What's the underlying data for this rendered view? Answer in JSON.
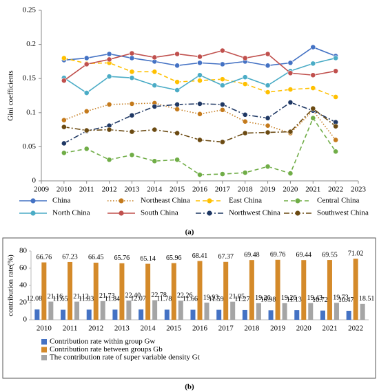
{
  "chart_data": [
    {
      "type": "line",
      "caption": "(a)",
      "y_label": "Gini coefficients",
      "x": [
        2010,
        2011,
        2012,
        2013,
        2014,
        2015,
        2016,
        2017,
        2018,
        2019,
        2020,
        2021,
        2022
      ],
      "xlim": [
        2009,
        2023
      ],
      "xticks": [
        2009,
        2010,
        2011,
        2012,
        2013,
        2014,
        2015,
        2016,
        2017,
        2018,
        2019,
        2020,
        2021,
        2022,
        2023
      ],
      "ylim": [
        0,
        0.25
      ],
      "yticks": [
        0,
        0.05,
        0.1,
        0.15,
        0.2,
        0.25
      ],
      "series": [
        {
          "name": "China",
          "color": "#4472c4",
          "style": "solid",
          "values": [
            0.177,
            0.18,
            0.186,
            0.18,
            0.175,
            0.169,
            0.173,
            0.171,
            0.175,
            0.169,
            0.173,
            0.196,
            0.183
          ]
        },
        {
          "name": "Northeast China",
          "color": "#c47a1c",
          "style": "dotted",
          "values": [
            0.089,
            0.102,
            0.112,
            0.113,
            0.114,
            0.105,
            0.098,
            0.104,
            0.087,
            0.081,
            0.07,
            0.103,
            0.06
          ]
        },
        {
          "name": "East China",
          "color": "#ffc000",
          "style": "dashed",
          "values": [
            0.18,
            0.172,
            0.173,
            0.16,
            0.16,
            0.145,
            0.147,
            0.149,
            0.142,
            0.13,
            0.134,
            0.136,
            0.123
          ]
        },
        {
          "name": "Central China",
          "color": "#70ad47",
          "style": "dashed",
          "values": [
            0.041,
            0.047,
            0.031,
            0.038,
            0.029,
            0.031,
            0.009,
            0.01,
            0.012,
            0.021,
            0.011,
            0.092,
            0.043
          ]
        },
        {
          "name": "North China",
          "color": "#4bacc6",
          "style": "solid",
          "values": [
            0.151,
            0.129,
            0.153,
            0.151,
            0.14,
            0.133,
            0.155,
            0.14,
            0.152,
            0.14,
            0.161,
            0.172,
            0.18
          ]
        },
        {
          "name": "South China",
          "color": "#c0504d",
          "style": "solid",
          "values": [
            0.147,
            0.171,
            0.178,
            0.187,
            0.181,
            0.186,
            0.182,
            0.191,
            0.18,
            0.186,
            0.158,
            0.155,
            0.161
          ]
        },
        {
          "name": "Northwest China",
          "color": "#1f3864",
          "style": "dash-dot",
          "values": [
            0.055,
            0.073,
            0.081,
            0.096,
            0.109,
            0.112,
            0.113,
            0.112,
            0.097,
            0.092,
            0.115,
            0.103,
            0.086
          ]
        },
        {
          "name": "Southwest China",
          "color": "#6b4a12",
          "style": "dash-dot",
          "values": [
            0.079,
            0.074,
            0.075,
            0.072,
            0.075,
            0.07,
            0.06,
            0.057,
            0.07,
            0.071,
            0.072,
            0.106,
            0.08
          ]
        }
      ]
    },
    {
      "type": "bar",
      "caption": "(b)",
      "y_label": "contribution rate(%)",
      "categories": [
        "2010",
        "2011",
        "2012",
        "2013",
        "2014",
        "2015",
        "2016",
        "2017",
        "2018",
        "2019",
        "2020",
        "2021",
        "2022"
      ],
      "ylim": [
        0,
        80
      ],
      "yticks": [
        0,
        20,
        40,
        60,
        80
      ],
      "series": [
        {
          "name": "Contribution rate within group Gw",
          "color": "#4472c4",
          "values": [
            12.08,
            11.65,
            11.83,
            11.84,
            12.07,
            11.78,
            11.66,
            11.59,
            11.27,
            10.98,
            11.13,
            10.72,
            10.47
          ],
          "value_labels": [
            "12.08",
            "11.65",
            "11.83",
            "11.84",
            "12.07",
            "11.78",
            "11.66",
            "11.59",
            "11.27",
            "10.98",
            "11.13",
            "10.72",
            "10.47"
          ]
        },
        {
          "name": "Contribution rate between groups Gb",
          "color": "#d48a2a",
          "values": [
            66.76,
            67.23,
            66.45,
            65.76,
            65.14,
            65.96,
            68.41,
            67.37,
            69.48,
            69.76,
            69.44,
            69.55,
            71.02
          ],
          "value_labels": [
            "66.76",
            "67.23",
            "66.45",
            "65.76",
            "65.14",
            "65.96",
            "68.41",
            "67.37",
            "69.48",
            "69.76",
            "69.44",
            "69.55",
            "71.02"
          ]
        },
        {
          "name": "The contribution rate of super variable density Gt",
          "color": "#a5a5a5",
          "values": [
            21.16,
            21.12,
            21.73,
            22.4,
            22.78,
            22.26,
            19.93,
            21.05,
            19.26,
            19.26,
            19.43,
            19.73,
            18.51
          ],
          "value_labels": [
            "21.16",
            "21.12",
            "21.73",
            "22.40",
            "22.78",
            "22.26",
            "19.93",
            "21.05",
            "19.26",
            "19.26",
            "19.43",
            "19.73",
            "18.51"
          ]
        }
      ]
    }
  ]
}
